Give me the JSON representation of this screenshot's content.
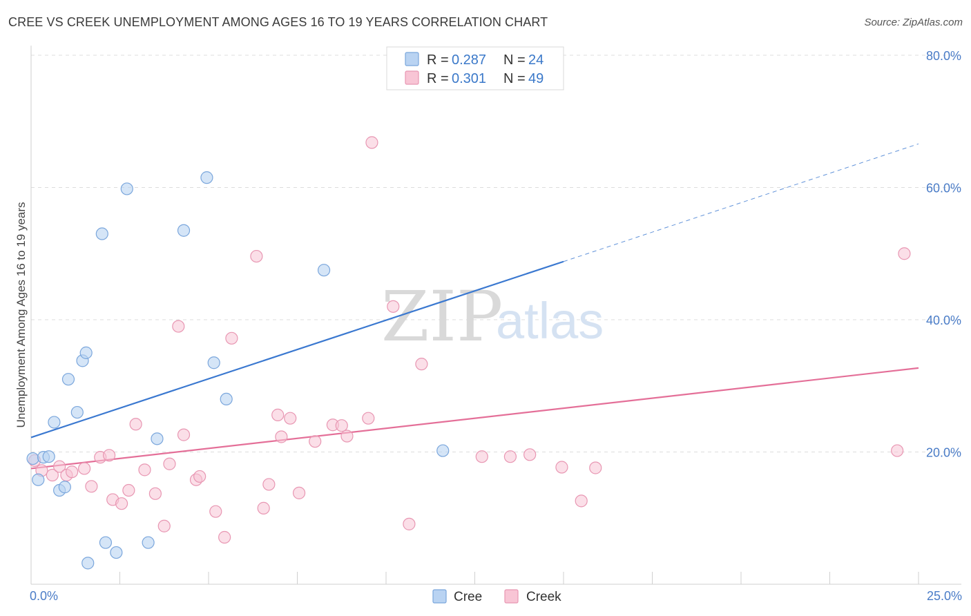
{
  "title": "CREE VS CREEK UNEMPLOYMENT AMONG AGES 16 TO 19 YEARS CORRELATION CHART",
  "source": "Source: ZipAtlas.com",
  "watermark": {
    "zip": "ZIP",
    "atlas": "atlas"
  },
  "colors": {
    "cree_fill": "#b9d3f2",
    "cree_stroke": "#7aa6dc",
    "cree_line": "#3a78d0",
    "creek_fill": "#f8c5d5",
    "creek_stroke": "#e896b2",
    "creek_line": "#e46f98",
    "grid": "#dcdcdc",
    "axis_text": "#4a7cc7"
  },
  "legend": {
    "cree": {
      "r_label": "R = ",
      "r_value": "0.287",
      "n_label": "N = ",
      "n_value": "24"
    },
    "creek": {
      "r_label": "R = ",
      "r_value": "0.301",
      "n_label": "N = ",
      "n_value": "49"
    }
  },
  "bottom_legend": {
    "cree": "Cree",
    "creek": "Creek"
  },
  "chart_data": {
    "type": "scatter",
    "title": "CREE VS CREEK UNEMPLOYMENT AMONG AGES 16 TO 19 YEARS CORRELATION CHART",
    "xlabel": "",
    "ylabel": "Unemployment Among Ages 16 to 19 years",
    "xlim": [
      0,
      25
    ],
    "ylim": [
      0,
      80
    ],
    "x_tick_labels": [
      "0.0%",
      "25.0%"
    ],
    "y_ticks": [
      20,
      40,
      60,
      80
    ],
    "y_tick_labels": [
      "20.0%",
      "40.0%",
      "60.0%",
      "80.0%"
    ],
    "grid": true,
    "legend_position": "top-center",
    "series": [
      {
        "name": "Cree",
        "points": [
          [
            0.05,
            19.0
          ],
          [
            0.2,
            15.8
          ],
          [
            0.35,
            19.2
          ],
          [
            0.5,
            19.3
          ],
          [
            0.65,
            24.5
          ],
          [
            0.8,
            14.2
          ],
          [
            0.95,
            14.7
          ],
          [
            1.05,
            31.0
          ],
          [
            1.3,
            26.0
          ],
          [
            1.45,
            33.8
          ],
          [
            1.55,
            35.0
          ],
          [
            1.6,
            3.2
          ],
          [
            2.0,
            53.0
          ],
          [
            2.1,
            6.3
          ],
          [
            2.4,
            4.8
          ],
          [
            2.7,
            59.8
          ],
          [
            3.3,
            6.3
          ],
          [
            3.55,
            22.0
          ],
          [
            4.3,
            53.5
          ],
          [
            4.95,
            61.5
          ],
          [
            5.15,
            33.5
          ],
          [
            5.5,
            28.0
          ],
          [
            8.25,
            47.5
          ],
          [
            11.6,
            20.2
          ]
        ],
        "trend": {
          "x0": 0,
          "y0": 22.2,
          "x1": 15,
          "y1": 48.8,
          "x_dash_end": 25,
          "y_dash_end": 66.6
        }
      },
      {
        "name": "Creek",
        "points": [
          [
            0.1,
            18.7
          ],
          [
            0.3,
            17.2
          ],
          [
            0.6,
            16.5
          ],
          [
            0.8,
            17.8
          ],
          [
            1.0,
            16.5
          ],
          [
            1.15,
            17.0
          ],
          [
            1.5,
            17.5
          ],
          [
            1.7,
            14.8
          ],
          [
            1.95,
            19.2
          ],
          [
            2.2,
            19.5
          ],
          [
            2.3,
            12.8
          ],
          [
            2.55,
            12.2
          ],
          [
            2.75,
            14.2
          ],
          [
            2.95,
            24.2
          ],
          [
            3.2,
            17.3
          ],
          [
            3.5,
            13.7
          ],
          [
            3.75,
            8.8
          ],
          [
            3.9,
            18.2
          ],
          [
            4.15,
            39.0
          ],
          [
            4.3,
            22.6
          ],
          [
            4.65,
            15.8
          ],
          [
            4.75,
            16.3
          ],
          [
            5.2,
            11.0
          ],
          [
            5.45,
            7.1
          ],
          [
            5.65,
            37.2
          ],
          [
            6.35,
            49.6
          ],
          [
            6.55,
            11.5
          ],
          [
            6.7,
            15.1
          ],
          [
            6.95,
            25.6
          ],
          [
            7.05,
            22.3
          ],
          [
            7.3,
            25.1
          ],
          [
            7.55,
            13.8
          ],
          [
            8.0,
            21.6
          ],
          [
            8.5,
            24.1
          ],
          [
            8.75,
            24.0
          ],
          [
            8.9,
            22.4
          ],
          [
            9.5,
            25.1
          ],
          [
            9.6,
            66.8
          ],
          [
            10.2,
            42.0
          ],
          [
            10.65,
            9.1
          ],
          [
            11.0,
            33.3
          ],
          [
            12.7,
            19.3
          ],
          [
            13.5,
            19.3
          ],
          [
            14.05,
            19.6
          ],
          [
            14.95,
            17.7
          ],
          [
            15.5,
            12.6
          ],
          [
            15.9,
            17.6
          ],
          [
            24.4,
            20.2
          ],
          [
            24.6,
            50.0
          ]
        ],
        "trend": {
          "x0": 0,
          "y0": 17.5,
          "x1": 25,
          "y1": 32.7
        }
      }
    ]
  }
}
